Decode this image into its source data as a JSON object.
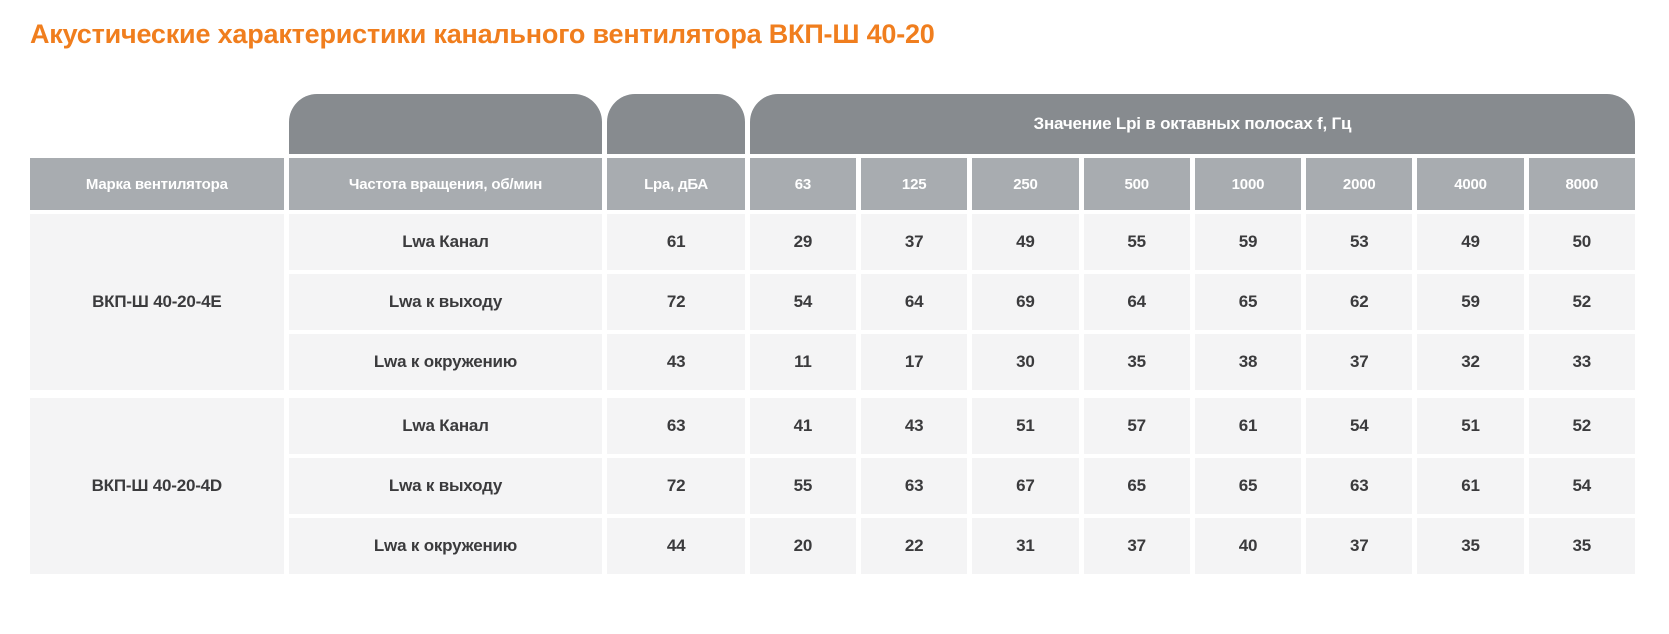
{
  "page": {
    "title": "Акустические характеристики канального вентилятора ВКП-Ш 40-20"
  },
  "colors": {
    "title_orange": "#f07e1e",
    "cap_gray": "#878b8f",
    "header_gray": "#a8acb0",
    "cell_gray": "#f4f4f5",
    "cell_text": "#3b3b3d",
    "header_text": "#ffffff"
  },
  "table": {
    "header": {
      "col_model": "Марка вентилятора",
      "col_freq": "Частота вращения, об/мин",
      "col_lpa": "Lpa, дБА",
      "octave_group_label": "Значение Lpi в октавных полосах f, Гц",
      "octave_bands": [
        "63",
        "125",
        "250",
        "500",
        "1000",
        "2000",
        "4000",
        "8000"
      ]
    },
    "groups": [
      {
        "model": "ВКП-Ш 40-20-4E",
        "rows": [
          {
            "label": "Lwa Канал",
            "lpa": "61",
            "octaves": [
              "29",
              "37",
              "49",
              "55",
              "59",
              "53",
              "49",
              "50"
            ]
          },
          {
            "label": "Lwa к выходу",
            "lpa": "72",
            "octaves": [
              "54",
              "64",
              "69",
              "64",
              "65",
              "62",
              "59",
              "52"
            ]
          },
          {
            "label": "Lwa к окружению",
            "lpa": "43",
            "octaves": [
              "11",
              "17",
              "30",
              "35",
              "38",
              "37",
              "32",
              "33"
            ]
          }
        ]
      },
      {
        "model": "ВКП-Ш 40-20-4D",
        "rows": [
          {
            "label": "Lwa Канал",
            "lpa": "63",
            "octaves": [
              "41",
              "43",
              "51",
              "57",
              "61",
              "54",
              "51",
              "52"
            ]
          },
          {
            "label": "Lwa к выходу",
            "lpa": "72",
            "octaves": [
              "55",
              "63",
              "67",
              "65",
              "65",
              "63",
              "61",
              "54"
            ]
          },
          {
            "label": "Lwa к окружению",
            "lpa": "44",
            "octaves": [
              "20",
              "22",
              "31",
              "37",
              "40",
              "37",
              "35",
              "35"
            ]
          }
        ]
      }
    ]
  }
}
